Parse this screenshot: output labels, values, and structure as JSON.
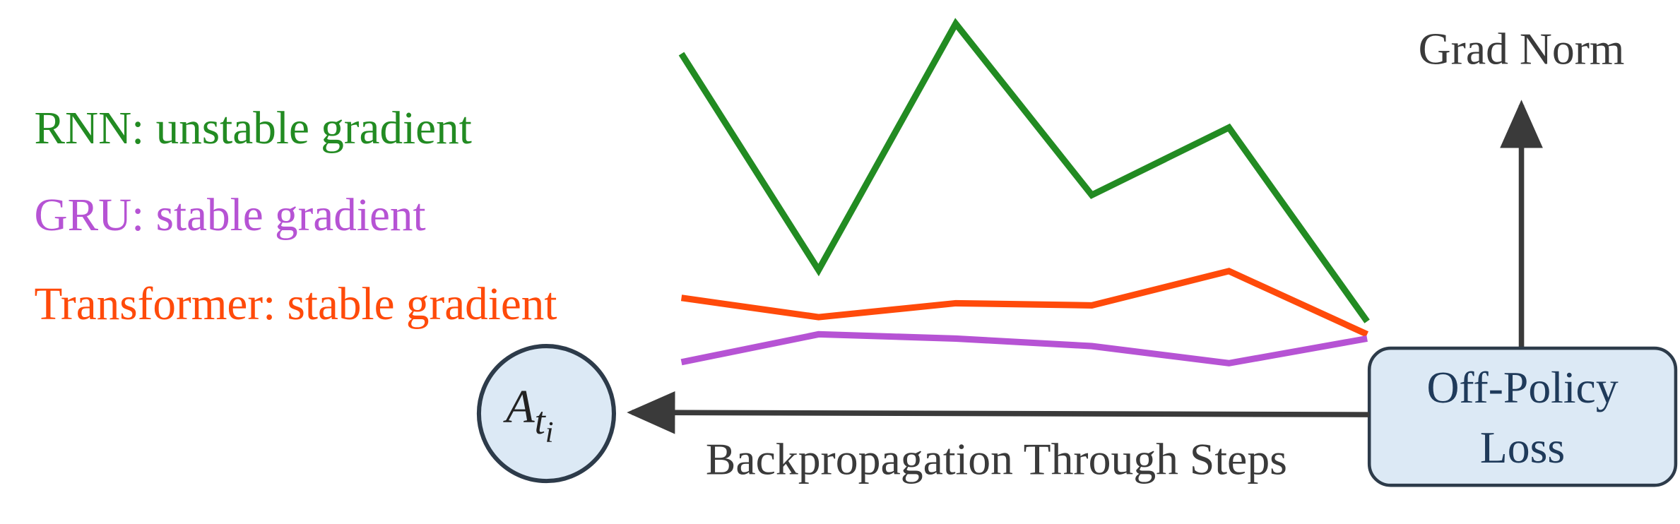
{
  "legend": {
    "items": [
      {
        "label": "RNN: unstable gradient",
        "color": "#228b22"
      },
      {
        "label": "GRU: stable gradient",
        "color": "#b653d4"
      },
      {
        "label": "Transformer: stable gradient",
        "color": "#ff4a0a"
      }
    ]
  },
  "axis_label": "Grad Norm",
  "loss_box": {
    "lines": [
      "Off-Policy",
      "Loss"
    ]
  },
  "node": {
    "base": "A",
    "sub": "t",
    "subsub": "i"
  },
  "arrow_label": "Backpropagation Through Steps"
}
